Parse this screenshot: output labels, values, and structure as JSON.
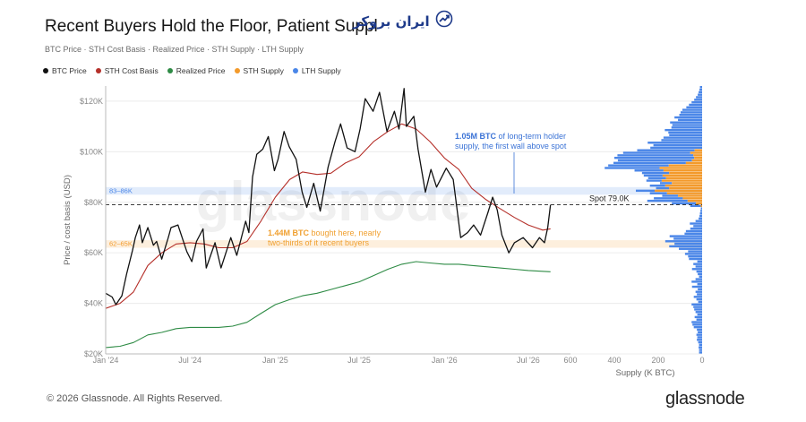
{
  "header": {
    "title": "Recent Buyers Hold the Floor, Patient Suppl",
    "subtitle": "BTC Price · STH Cost Basis · Realized Price · STH Supply · LTH Supply",
    "brand_badge_text": "ایران بروکر",
    "brand_icon": "trend-chart-icon"
  },
  "legend": [
    {
      "label": "BTC Price",
      "color": "#111111"
    },
    {
      "label": "STH Cost Basis",
      "color": "#b5302a"
    },
    {
      "label": "Realized Price",
      "color": "#2e8b45"
    },
    {
      "label": "STH Supply",
      "color": "#f39a2b"
    },
    {
      "label": "LTH Supply",
      "color": "#4a86e8"
    }
  ],
  "footer": {
    "copyright": "© 2026 Glassnode. All Rights Reserved.",
    "logo": "glassnode"
  },
  "chart_data": [
    {
      "type": "line",
      "watermark": "glassnode",
      "ylabel": "Price / cost basis (USD)",
      "ylim": [
        20000,
        126000
      ],
      "y_ticks": [
        {
          "value": 20000,
          "label": "$20K"
        },
        {
          "value": 40000,
          "label": "$40K"
        },
        {
          "value": 60000,
          "label": "$60K"
        },
        {
          "value": 80000,
          "label": "$80K"
        },
        {
          "value": 100000,
          "label": "$100K"
        },
        {
          "value": 120000,
          "label": "$120K"
        }
      ],
      "x_range": [
        "2024-01-01",
        "2026-09-30"
      ],
      "x_ticks": [
        {
          "date": "2024-01-01",
          "label": "Jan '24"
        },
        {
          "date": "2024-07-01",
          "label": "Jul '24"
        },
        {
          "date": "2025-01-01",
          "label": "Jan '25"
        },
        {
          "date": "2025-07-01",
          "label": "Jul '25"
        },
        {
          "date": "2026-01-01",
          "label": "Jan '26"
        },
        {
          "date": "2026-07-01",
          "label": "Jul '26"
        }
      ],
      "grid": true,
      "bands": [
        {
          "label": "83–86K",
          "from": 83000,
          "to": 86000,
          "color": "#4a86e8"
        },
        {
          "label": "62–65K",
          "from": 62000,
          "to": 65000,
          "color": "#f39a2b"
        }
      ],
      "spot": {
        "value": 79000,
        "label": "Spot 79.0K"
      },
      "annotations": [
        {
          "lines": [
            {
              "bold": "1.05M BTC",
              "text": " of long-term holder"
            },
            {
              "bold": "",
              "text": "supply, the first wall above spot"
            }
          ],
          "color": "#3b73d6"
        },
        {
          "lines": [
            {
              "bold": "1.44M BTC",
              "text": " bought here, nearly"
            },
            {
              "bold": "",
              "text": "two-thirds of it recent buyers"
            }
          ],
          "color": "#f0a030"
        }
      ],
      "series": [
        {
          "name": "BTC Price",
          "color": "#111111",
          "points": [
            [
              "2024-01-01",
              44000
            ],
            [
              "2024-01-15",
              42500
            ],
            [
              "2024-01-23",
              39500
            ],
            [
              "2024-02-05",
              43000
            ],
            [
              "2024-02-15",
              51500
            ],
            [
              "2024-02-28",
              61000
            ],
            [
              "2024-03-05",
              66000
            ],
            [
              "2024-03-14",
              71000
            ],
            [
              "2024-03-20",
              64000
            ],
            [
              "2024-04-01",
              70000
            ],
            [
              "2024-04-13",
              63000
            ],
            [
              "2024-04-20",
              64500
            ],
            [
              "2024-05-01",
              57500
            ],
            [
              "2024-05-15",
              66000
            ],
            [
              "2024-05-21",
              70000
            ],
            [
              "2024-06-05",
              71000
            ],
            [
              "2024-06-24",
              60500
            ],
            [
              "2024-07-05",
              56500
            ],
            [
              "2024-07-15",
              64500
            ],
            [
              "2024-07-29",
              69500
            ],
            [
              "2024-08-05",
              54000
            ],
            [
              "2024-08-24",
              64000
            ],
            [
              "2024-09-06",
              54000
            ],
            [
              "2024-09-27",
              66000
            ],
            [
              "2024-10-10",
              59000
            ],
            [
              "2024-10-29",
              72500
            ],
            [
              "2024-11-05",
              68000
            ],
            [
              "2024-11-13",
              90000
            ],
            [
              "2024-11-22",
              99000
            ],
            [
              "2024-12-05",
              101000
            ],
            [
              "2024-12-17",
              106000
            ],
            [
              "2024-12-30",
              92500
            ],
            [
              "2025-01-07",
              97000
            ],
            [
              "2025-01-20",
              108000
            ],
            [
              "2025-01-31",
              102000
            ],
            [
              "2025-02-15",
              97000
            ],
            [
              "2025-02-28",
              84000
            ],
            [
              "2025-03-10",
              78000
            ],
            [
              "2025-03-25",
              87500
            ],
            [
              "2025-04-08",
              76500
            ],
            [
              "2025-04-25",
              94000
            ],
            [
              "2025-05-10",
              104000
            ],
            [
              "2025-05-22",
              111000
            ],
            [
              "2025-06-05",
              101500
            ],
            [
              "2025-06-22",
              100000
            ],
            [
              "2025-07-03",
              109000
            ],
            [
              "2025-07-14",
              121000
            ],
            [
              "2025-07-31",
              116000
            ],
            [
              "2025-08-14",
              123500
            ],
            [
              "2025-08-30",
              108000
            ],
            [
              "2025-09-15",
              116000
            ],
            [
              "2025-09-25",
              109000
            ],
            [
              "2025-10-06",
              125000
            ],
            [
              "2025-10-11",
              110000
            ],
            [
              "2025-10-27",
              114000
            ],
            [
              "2025-11-05",
              101000
            ],
            [
              "2025-11-21",
              84000
            ],
            [
              "2025-12-03",
              93000
            ],
            [
              "2025-12-15",
              86000
            ],
            [
              "2026-01-05",
              93500
            ],
            [
              "2026-01-20",
              89000
            ],
            [
              "2026-02-05",
              66000
            ],
            [
              "2026-02-20",
              68000
            ],
            [
              "2026-03-05",
              71000
            ],
            [
              "2026-03-20",
              67000
            ],
            [
              "2026-04-05",
              76000
            ],
            [
              "2026-04-15",
              82000
            ],
            [
              "2026-04-25",
              77000
            ],
            [
              "2026-05-05",
              67000
            ],
            [
              "2026-05-20",
              60000
            ],
            [
              "2026-06-01",
              64000
            ],
            [
              "2026-06-20",
              66000
            ],
            [
              "2026-07-10",
              62000
            ],
            [
              "2026-07-25",
              66000
            ],
            [
              "2026-08-05",
              64000
            ],
            [
              "2026-08-12",
              70000
            ],
            [
              "2026-08-18",
              79000
            ]
          ]
        },
        {
          "name": "STH Cost Basis",
          "color": "#b5302a",
          "points": [
            [
              "2024-01-01",
              38000
            ],
            [
              "2024-02-01",
              40000
            ],
            [
              "2024-03-01",
              44500
            ],
            [
              "2024-04-01",
              55000
            ],
            [
              "2024-05-01",
              60000
            ],
            [
              "2024-06-01",
              63500
            ],
            [
              "2024-07-01",
              64000
            ],
            [
              "2024-08-01",
              63500
            ],
            [
              "2024-09-01",
              62000
            ],
            [
              "2024-10-01",
              62000
            ],
            [
              "2024-11-01",
              64500
            ],
            [
              "2024-12-01",
              72500
            ],
            [
              "2025-01-01",
              82000
            ],
            [
              "2025-02-01",
              89000
            ],
            [
              "2025-03-01",
              92000
            ],
            [
              "2025-04-01",
              91000
            ],
            [
              "2025-05-01",
              91500
            ],
            [
              "2025-06-01",
              95500
            ],
            [
              "2025-07-01",
              98000
            ],
            [
              "2025-08-01",
              104000
            ],
            [
              "2025-09-01",
              108000
            ],
            [
              "2025-10-01",
              111000
            ],
            [
              "2025-11-01",
              109000
            ],
            [
              "2025-12-01",
              104000
            ],
            [
              "2026-01-01",
              97500
            ],
            [
              "2026-02-01",
              93000
            ],
            [
              "2026-03-01",
              85500
            ],
            [
              "2026-04-01",
              81000
            ],
            [
              "2026-05-01",
              77500
            ],
            [
              "2026-06-01",
              74000
            ],
            [
              "2026-07-01",
              71000
            ],
            [
              "2026-08-01",
              69000
            ],
            [
              "2026-08-18",
              69500
            ]
          ]
        },
        {
          "name": "Realized Price",
          "color": "#2e8b45",
          "points": [
            [
              "2024-01-01",
              22500
            ],
            [
              "2024-02-01",
              23000
            ],
            [
              "2024-03-01",
              24500
            ],
            [
              "2024-04-01",
              27500
            ],
            [
              "2024-05-01",
              28500
            ],
            [
              "2024-06-01",
              30000
            ],
            [
              "2024-07-01",
              30500
            ],
            [
              "2024-08-01",
              30500
            ],
            [
              "2024-09-01",
              30500
            ],
            [
              "2024-10-01",
              31000
            ],
            [
              "2024-11-01",
              32500
            ],
            [
              "2024-12-01",
              36000
            ],
            [
              "2025-01-01",
              39500
            ],
            [
              "2025-02-01",
              41500
            ],
            [
              "2025-03-01",
              43000
            ],
            [
              "2025-04-01",
              44000
            ],
            [
              "2025-05-01",
              45500
            ],
            [
              "2025-06-01",
              47000
            ],
            [
              "2025-07-01",
              48500
            ],
            [
              "2025-08-01",
              51000
            ],
            [
              "2025-09-01",
              53500
            ],
            [
              "2025-10-01",
              55500
            ],
            [
              "2025-11-01",
              56500
            ],
            [
              "2025-12-01",
              56000
            ],
            [
              "2026-01-01",
              55500
            ],
            [
              "2026-02-01",
              55500
            ],
            [
              "2026-03-01",
              55000
            ],
            [
              "2026-04-01",
              54500
            ],
            [
              "2026-05-01",
              54000
            ],
            [
              "2026-06-01",
              53500
            ],
            [
              "2026-07-01",
              53000
            ],
            [
              "2026-08-18",
              52500
            ]
          ]
        }
      ]
    },
    {
      "type": "bar",
      "orientation": "horizontal",
      "xlabel": "Supply (K BTC)",
      "xlim": [
        0,
        600
      ],
      "x_ticks": [
        600,
        400,
        200,
        0
      ],
      "bin_width": 1000,
      "bin_from": 20000,
      "series": [
        {
          "name": "LTH Supply",
          "color": "#4a86e8",
          "values": [
            14,
            14,
            16,
            14,
            18,
            24,
            22,
            26,
            20,
            24,
            38,
            44,
            48,
            26,
            34,
            22,
            30,
            36,
            40,
            48,
            18,
            26,
            38,
            24,
            30,
            20,
            46,
            22,
            48,
            30,
            14,
            20,
            26,
            46,
            30,
            40,
            22,
            60,
            64,
            78,
            64,
            106,
            150,
            126,
            168,
            130,
            148,
            80,
            74,
            54,
            40,
            56,
            30,
            16,
            12,
            10,
            8,
            6,
            48,
            110,
            184,
            132,
            72,
            78,
            86,
            60,
            70,
            54,
            70,
            82,
            86,
            124,
            132,
            250,
            276,
            330,
            338,
            364,
            346,
            306,
            262,
            236,
            222,
            248,
            186,
            176,
            150,
            154,
            170,
            140,
            136,
            146,
            110,
            126,
            104,
            98,
            90,
            72,
            60,
            48,
            36,
            28,
            20,
            16,
            12,
            10
          ]
        },
        {
          "name": "STH Supply",
          "color": "#f39a2b",
          "values": [
            0,
            0,
            0,
            0,
            0,
            0,
            0,
            0,
            0,
            0,
            0,
            0,
            0,
            0,
            0,
            0,
            0,
            0,
            0,
            0,
            0,
            0,
            0,
            0,
            0,
            0,
            0,
            0,
            0,
            0,
            0,
            0,
            0,
            0,
            0,
            0,
            0,
            0,
            0,
            0,
            0,
            0,
            0,
            0,
            0,
            0,
            0,
            0,
            0,
            0,
            0,
            0,
            0,
            0,
            0,
            0,
            0,
            0,
            6,
            28,
            66,
            88,
            110,
            160,
            216,
            150,
            168,
            138,
            184,
            164,
            180,
            150,
            176,
            194,
            152,
            74,
            46,
            36,
            40,
            54,
            34,
            0,
            0,
            0,
            0,
            0,
            0,
            0,
            0,
            0,
            0,
            0,
            0,
            0,
            0,
            0,
            0,
            0,
            0,
            0,
            0,
            0,
            0,
            0,
            0,
            0
          ]
        }
      ]
    }
  ]
}
